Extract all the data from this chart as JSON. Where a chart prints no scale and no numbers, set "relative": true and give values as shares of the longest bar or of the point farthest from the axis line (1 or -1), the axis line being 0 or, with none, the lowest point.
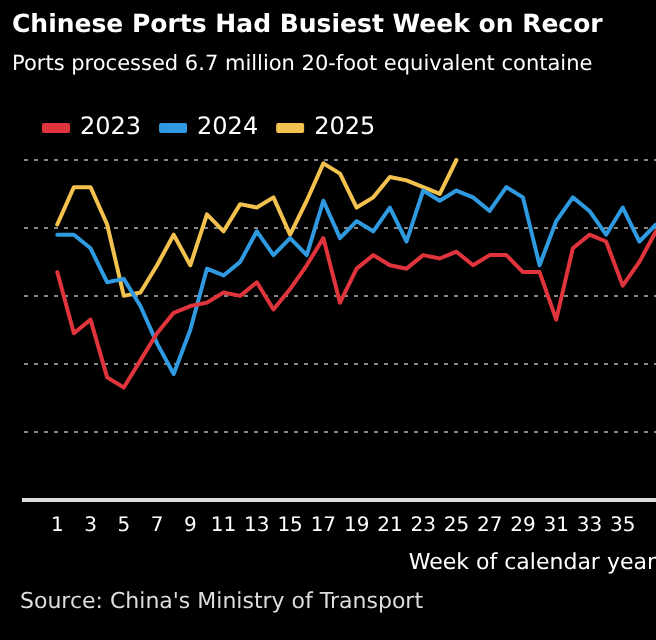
{
  "chart_data": {
    "type": "line",
    "title": "Chinese Ports Had Busiest Week on Recor",
    "subtitle": "Ports processed 6.7 million 20-foot equivalent containe",
    "xlabel": "Week of calendar year",
    "annotations": [
      "Source: China's Ministry of Transport"
    ],
    "relative": true,
    "x": [
      1,
      2,
      3,
      4,
      5,
      6,
      7,
      8,
      9,
      10,
      11,
      12,
      13,
      14,
      15,
      16,
      17,
      18,
      19,
      20,
      21,
      22,
      23,
      24,
      25,
      26,
      27,
      28,
      29,
      30,
      31,
      32,
      33,
      34,
      35,
      36,
      37
    ],
    "xlim": [
      -1,
      37
    ],
    "xticks": [
      1,
      3,
      5,
      7,
      9,
      11,
      13,
      15,
      17,
      19,
      21,
      23,
      25,
      27,
      29,
      31,
      33,
      35
    ],
    "tick_labels": "x",
    "grid": "y",
    "legend": "top left",
    "marker": "none",
    "line_style": "solid",
    "series": [
      {
        "name": "2023",
        "color": "#e0343c",
        "values": [
          0.67,
          0.49,
          0.53,
          0.36,
          0.33,
          0.41,
          0.49,
          0.55,
          0.57,
          0.58,
          0.61,
          0.6,
          0.64,
          0.56,
          0.62,
          0.69,
          0.77,
          0.58,
          0.68,
          0.72,
          0.69,
          0.68,
          0.72,
          0.71,
          0.73,
          0.69,
          0.72,
          0.72,
          0.67,
          0.67,
          0.53,
          0.74,
          0.78,
          0.76,
          0.63,
          0.7,
          0.79
        ]
      },
      {
        "name": "2024",
        "color": "#2f9ae0",
        "values": [
          0.78,
          0.78,
          0.74,
          0.64,
          0.65,
          0.57,
          0.46,
          0.37,
          0.5,
          0.68,
          0.66,
          0.7,
          0.79,
          0.72,
          0.77,
          0.72,
          0.88,
          0.77,
          0.82,
          0.79,
          0.86,
          0.76,
          0.91,
          0.88,
          0.91,
          0.89,
          0.85,
          0.92,
          0.89,
          0.69,
          0.82,
          0.89,
          0.85,
          0.78,
          0.86,
          0.76,
          0.81
        ]
      },
      {
        "name": "2025",
        "color": "#f2c14e",
        "values": [
          0.81,
          0.92,
          0.92,
          0.81,
          0.6,
          0.61,
          0.69,
          0.78,
          0.69,
          0.84,
          0.79,
          0.87,
          0.86,
          0.89,
          0.78,
          0.88,
          0.99,
          0.96,
          0.86,
          0.89,
          0.95,
          0.94,
          0.92,
          0.9,
          1,
          null,
          null,
          null,
          null,
          null,
          null,
          null,
          null,
          null,
          null,
          null,
          null
        ]
      }
    ]
  }
}
